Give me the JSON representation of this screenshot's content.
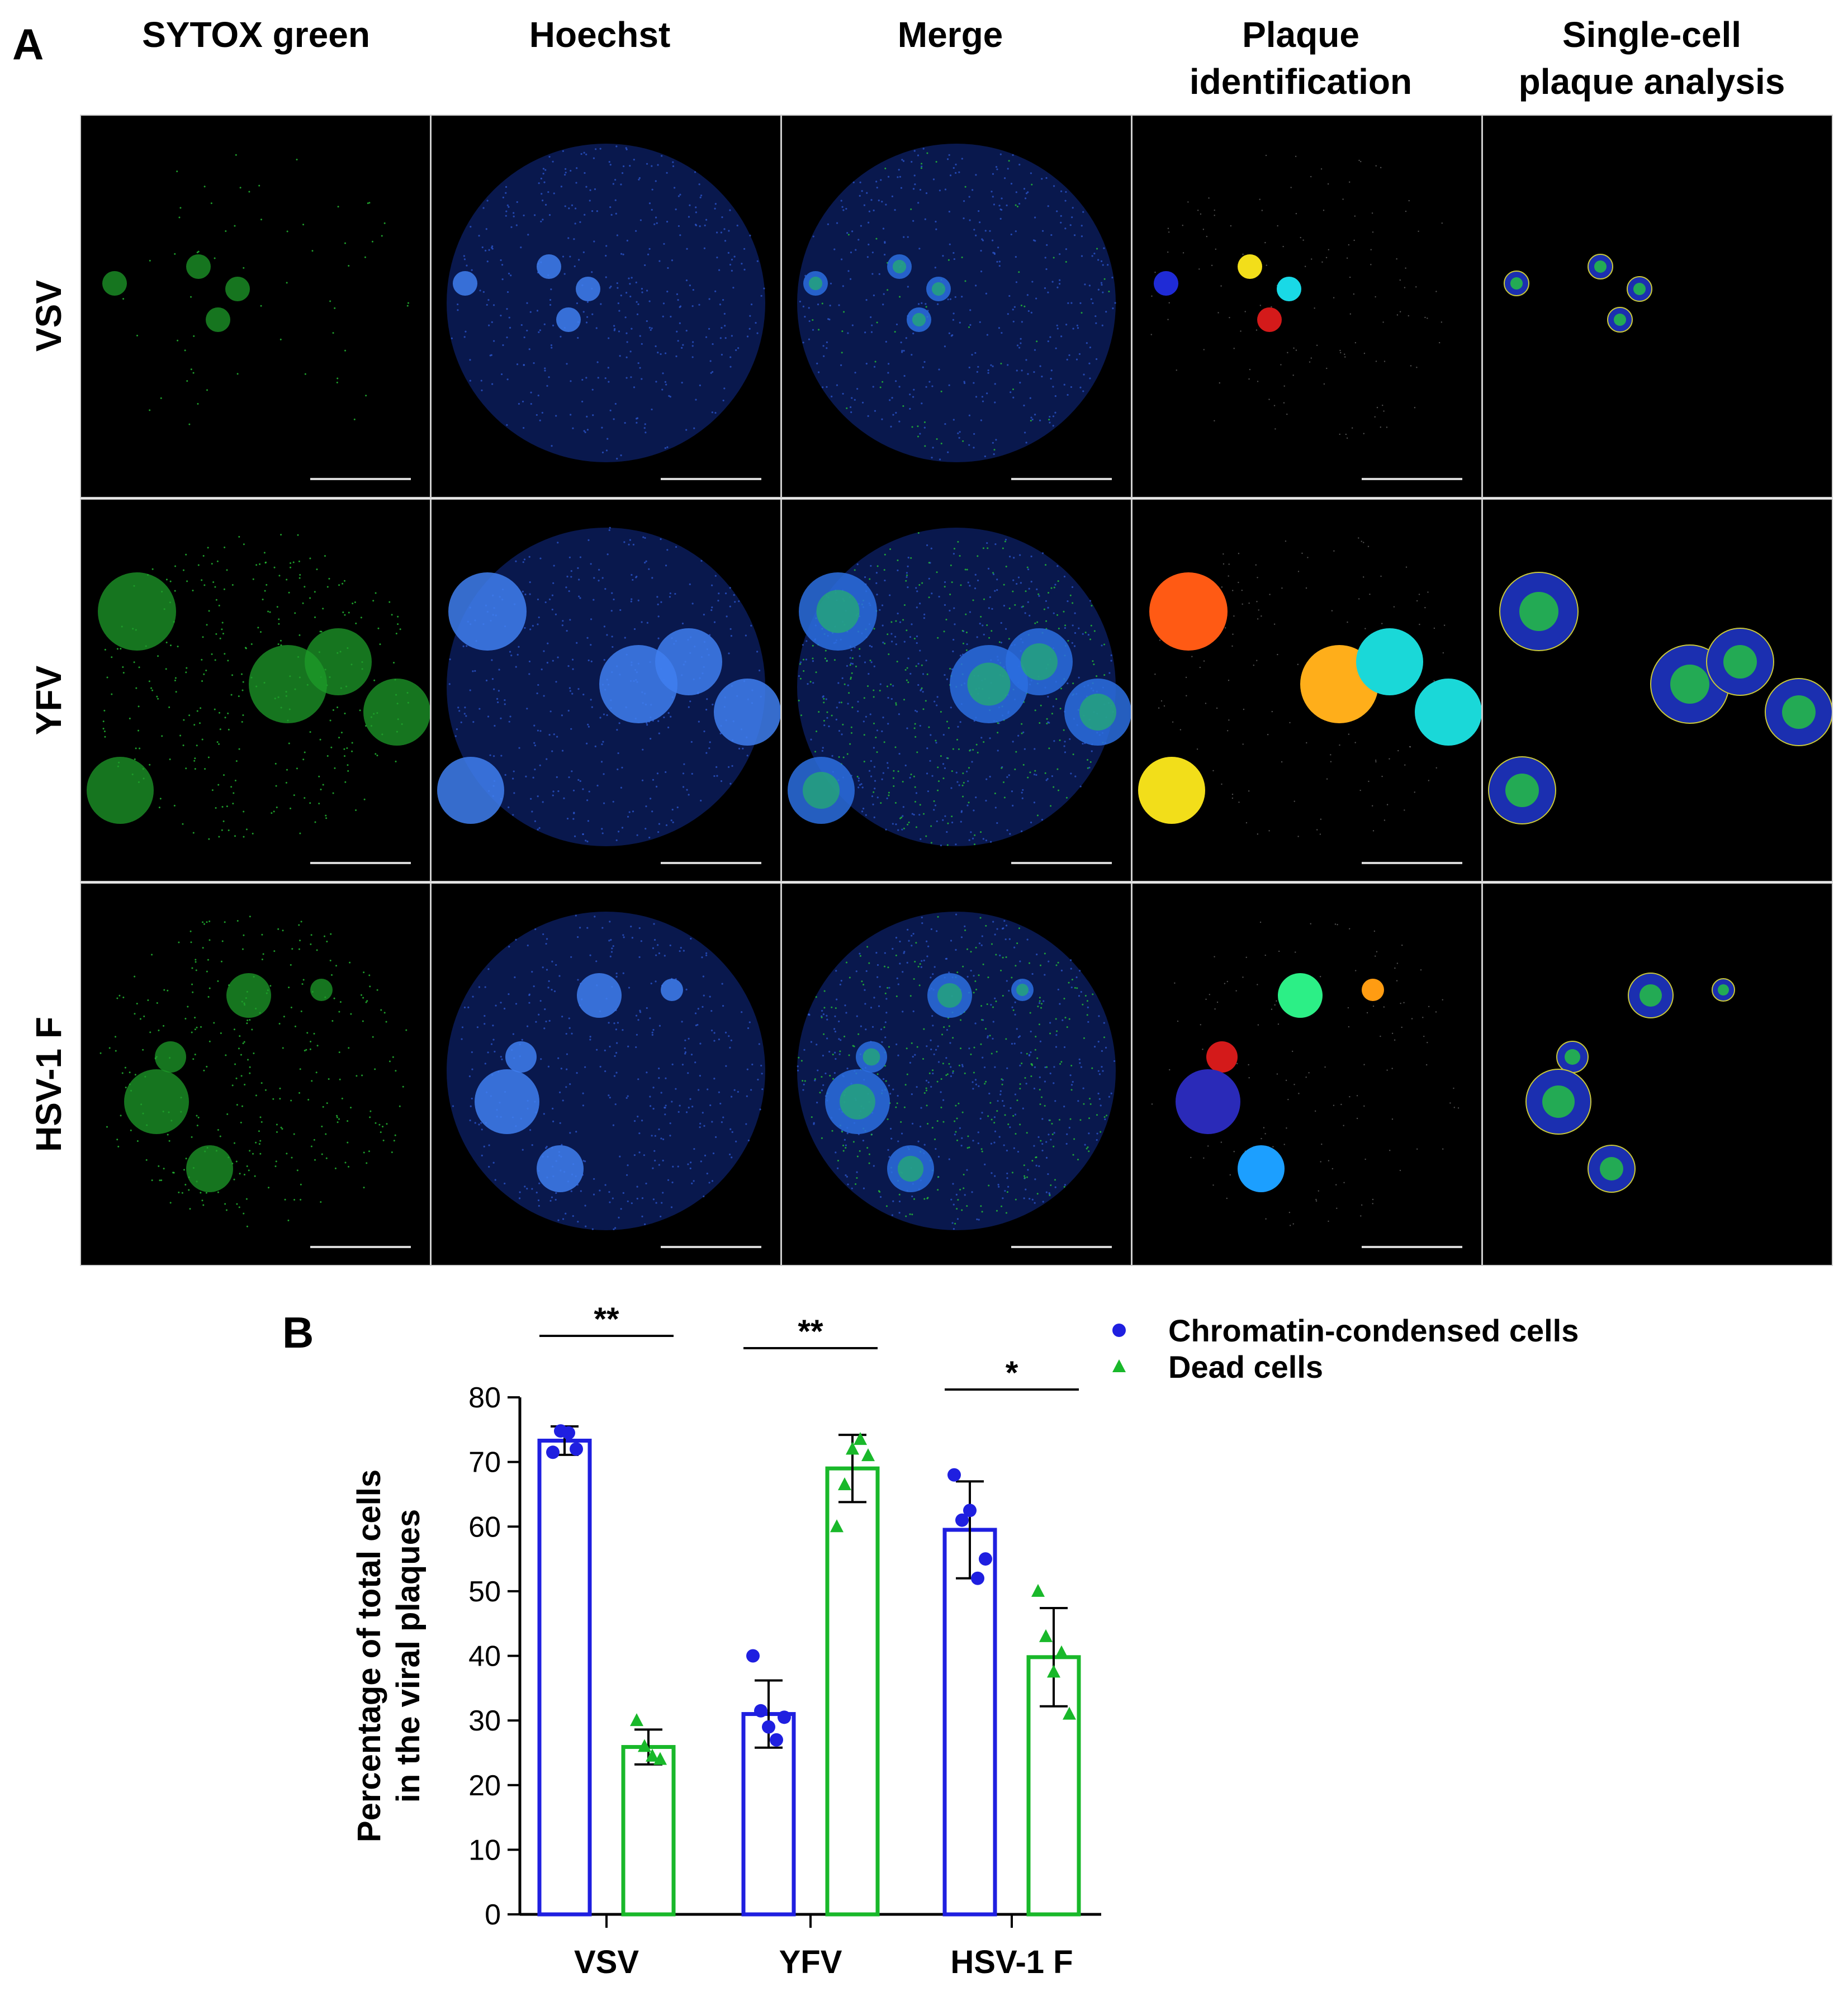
{
  "panel_a": {
    "letter": "A",
    "column_headers": [
      [
        "SYTOX green"
      ],
      [
        "Hoechst"
      ],
      [
        "Merge"
      ],
      [
        "Plaque",
        "identification"
      ],
      [
        "Single-cell",
        "plaque analysis"
      ]
    ],
    "row_labels": [
      "VSV",
      "YFV",
      "HSV-1 F"
    ]
  },
  "panel_b": {
    "letter": "B",
    "legend": [
      {
        "label": "Chromatin-condensed cells",
        "color": "#1f1fe0",
        "marker": "circle"
      },
      {
        "label": "Dead cells",
        "color": "#19b82a",
        "marker": "triangle"
      }
    ]
  },
  "chart_data": {
    "type": "bar",
    "title": "",
    "xlabel": "",
    "ylabel": "Percentage of total cells in the viral plaques",
    "ylabel_lines": [
      "Percentage of total cells",
      "in the viral plaques"
    ],
    "ylim": [
      0,
      80
    ],
    "yticks": [
      0,
      10,
      20,
      30,
      40,
      50,
      60,
      70,
      80
    ],
    "categories": [
      "VSV",
      "YFV",
      "HSV-1 F"
    ],
    "series": [
      {
        "name": "Chromatin-condensed cells",
        "color": "#1f1fe0",
        "marker": "circle",
        "values": [
          73.3,
          31.0,
          59.5
        ],
        "sd": [
          2.2,
          5.2,
          7.5
        ],
        "points": [
          [
            71.5,
            74.8,
            74.5,
            72.0
          ],
          [
            40.0,
            31.5,
            29.0,
            27.0,
            30.5
          ],
          [
            68.0,
            61.0,
            62.5,
            52.0,
            55.0
          ]
        ]
      },
      {
        "name": "Dead cells",
        "color": "#19b82a",
        "marker": "triangle",
        "values": [
          25.9,
          69.0,
          39.8
        ],
        "sd": [
          2.7,
          5.2,
          7.6
        ],
        "points": [
          [
            30.0,
            26.0,
            24.5,
            24.0
          ],
          [
            60.0,
            66.5,
            72.0,
            73.5,
            71.0
          ],
          [
            50.0,
            43.0,
            37.5,
            40.5,
            31.0
          ]
        ]
      }
    ],
    "significance": [
      "**",
      "**",
      "*"
    ]
  }
}
